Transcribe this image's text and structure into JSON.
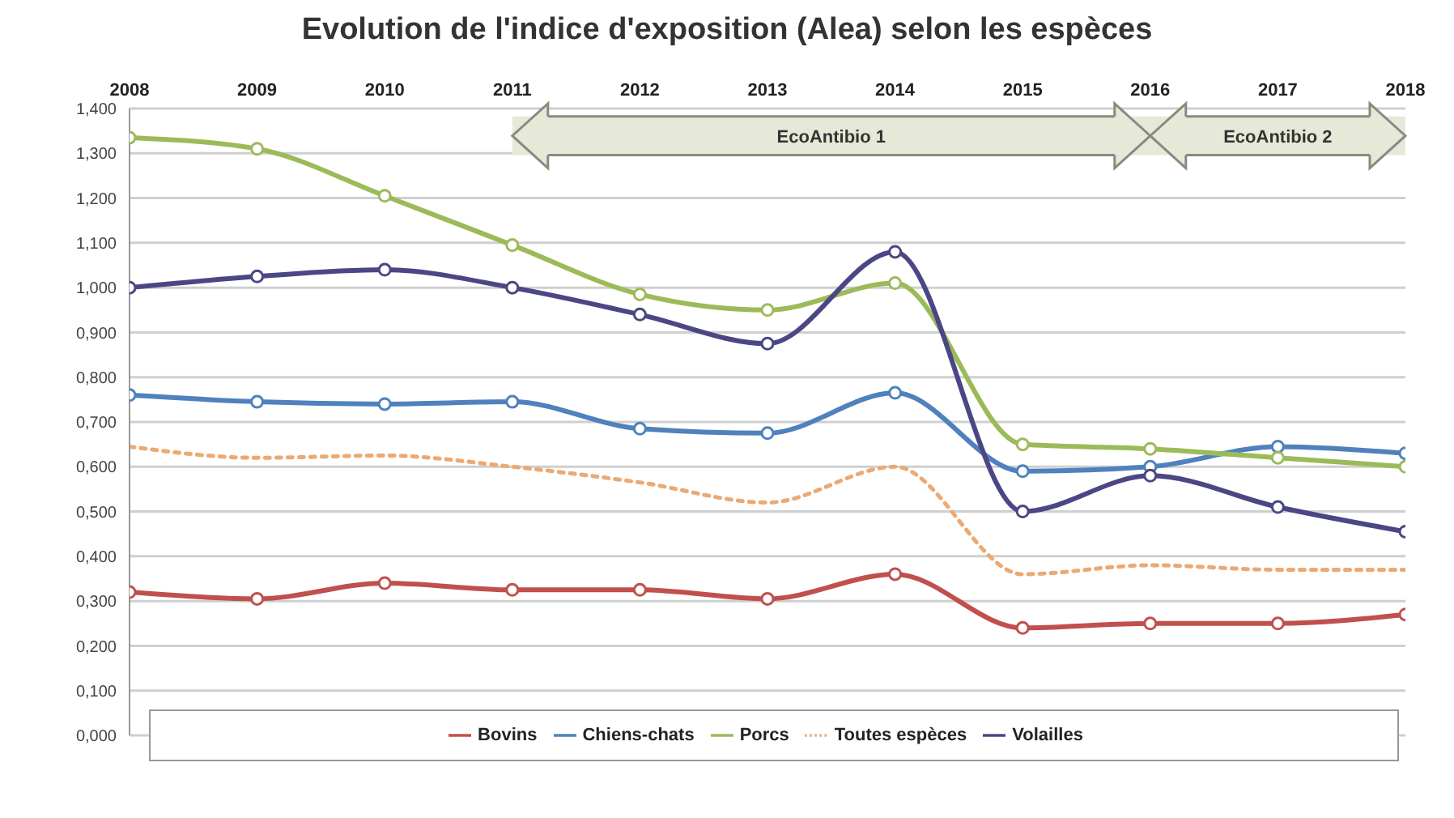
{
  "chart_data": {
    "type": "line",
    "title": "Evolution de l'indice d'exposition (Alea) selon les espèces",
    "categories": [
      "2008",
      "2009",
      "2010",
      "2011",
      "2012",
      "2013",
      "2014",
      "2015",
      "2016",
      "2017",
      "2018"
    ],
    "series": [
      {
        "name": "Chiens-chats",
        "color": "#4f81bd",
        "values": [
          0.76,
          0.745,
          0.74,
          0.745,
          0.685,
          0.675,
          0.765,
          0.59,
          0.6,
          0.645,
          0.63
        ]
      },
      {
        "name": "Bovins",
        "color": "#c0504d",
        "values": [
          0.32,
          0.305,
          0.34,
          0.325,
          0.325,
          0.305,
          0.36,
          0.24,
          0.25,
          0.25,
          0.27
        ]
      },
      {
        "name": "Porcs",
        "color": "#9bbb59",
        "values": [
          1.335,
          1.31,
          1.205,
          1.095,
          0.985,
          0.95,
          1.01,
          0.65,
          0.64,
          0.62,
          0.6
        ]
      },
      {
        "name": "Volailles",
        "color": "#4b4785",
        "values": [
          1.0,
          1.025,
          1.04,
          1.0,
          0.94,
          0.875,
          1.08,
          0.5,
          0.58,
          0.51,
          0.455
        ]
      },
      {
        "name": "Toutes espèces",
        "color": "#eba973",
        "values": [
          0.645,
          0.62,
          0.625,
          0.6,
          0.565,
          0.52,
          0.6,
          0.36,
          0.38,
          0.37,
          0.37
        ],
        "marker": "none",
        "line_style": "dotted"
      }
    ],
    "ylim": [
      0,
      1.4
    ],
    "yticks": [
      {
        "value": 0,
        "label": "0,000"
      },
      {
        "value": 0.1,
        "label": "0,100"
      },
      {
        "value": 0.2,
        "label": "0,200"
      },
      {
        "value": 0.3,
        "label": "0,300"
      },
      {
        "value": 0.4,
        "label": "0,400"
      },
      {
        "value": 0.5,
        "label": "0,500"
      },
      {
        "value": 0.6,
        "label": "0,600"
      },
      {
        "value": 0.7,
        "label": "0,700"
      },
      {
        "value": 0.8,
        "label": "0,800"
      },
      {
        "value": 0.9,
        "label": "0,900"
      },
      {
        "value": 1.0,
        "label": "1,000"
      },
      {
        "value": 1.1,
        "label": "1,100"
      },
      {
        "value": 1.2,
        "label": "1,200"
      },
      {
        "value": 1.3,
        "label": "1,300"
      },
      {
        "value": 1.4,
        "label": "1,400"
      }
    ],
    "bands": [
      {
        "axis": "x",
        "from": "2011",
        "to": "2016",
        "label": "EcoAntibio 1",
        "color": "#e6e9d8"
      },
      {
        "axis": "x",
        "from": "2016",
        "to": "2018",
        "label": "EcoAntibio 2",
        "color": "#e6e9d8"
      }
    ],
    "grid": "y",
    "legend": "bottom",
    "marker": "circle",
    "line_style": "solid"
  }
}
